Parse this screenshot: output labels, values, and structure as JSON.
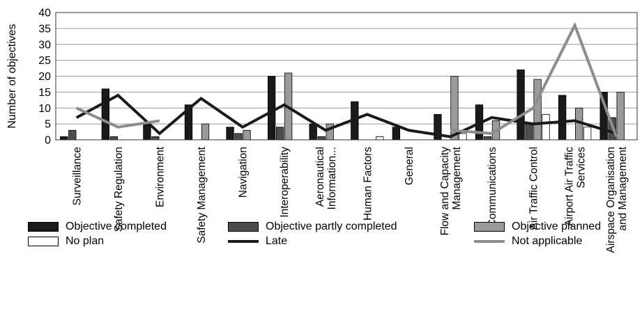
{
  "chart_data": {
    "type": "bar",
    "title": "",
    "xlabel": "",
    "ylabel": "Number of objectives",
    "ylim": [
      0,
      40
    ],
    "yticks": [
      0,
      5,
      10,
      15,
      20,
      25,
      30,
      35,
      40
    ],
    "grid": true,
    "legend_position": "bottom",
    "categories": [
      [
        "Surveillance"
      ],
      [
        "Safety Regulation"
      ],
      [
        "Environment"
      ],
      [
        "Safety Management"
      ],
      [
        "Navigation"
      ],
      [
        "Interoperability"
      ],
      [
        "Aeronautical",
        "Information..."
      ],
      [
        "Human Factors"
      ],
      [
        "General"
      ],
      [
        "Flow and Capacity",
        "Management"
      ],
      [
        "Communications"
      ],
      [
        "Air Traffic Control"
      ],
      [
        "Airport Air Traffic",
        "Services"
      ],
      [
        "Airspace Organisation",
        "and Management"
      ]
    ],
    "series": [
      {
        "name": "Objective completed",
        "type": "bar",
        "color": "#1a1a1a",
        "values": [
          1,
          16,
          5,
          11,
          4,
          20,
          5,
          12,
          4,
          8,
          11,
          22,
          14,
          15
        ]
      },
      {
        "name": "Objective partly completed",
        "type": "bar",
        "color": "#4d4d4d",
        "values": [
          3,
          1,
          1,
          0,
          2,
          4,
          1,
          0,
          0,
          0,
          1,
          5,
          0,
          7
        ]
      },
      {
        "name": "Objective planned",
        "type": "bar",
        "color": "#9a9a9a",
        "values": [
          0,
          0,
          0,
          5,
          3,
          21,
          5,
          0,
          0,
          20,
          6,
          19,
          10,
          15
        ]
      },
      {
        "name": "No plan",
        "type": "bar",
        "color": "#ffffff",
        "values": [
          0,
          0,
          0,
          0,
          0,
          0,
          0,
          1,
          0,
          2,
          0,
          8,
          4,
          0
        ]
      },
      {
        "name": "Late",
        "type": "line",
        "color": "#1a1a1a",
        "values": [
          7,
          14,
          2,
          13,
          4,
          11,
          3,
          8,
          3,
          1,
          7,
          5,
          6,
          2
        ]
      },
      {
        "name": "Not applicable",
        "type": "line",
        "color": "#8c8c8c",
        "values": [
          10,
          4,
          6,
          null,
          null,
          null,
          null,
          null,
          null,
          3,
          2,
          10,
          36,
          1
        ]
      }
    ]
  }
}
